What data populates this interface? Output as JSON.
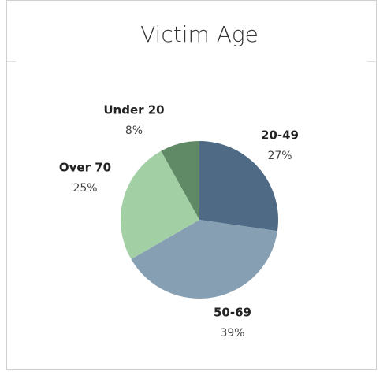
{
  "chart_data": {
    "type": "pie",
    "title": "Victim Age",
    "categories": [
      "20-49",
      "50-69",
      "Over 70",
      "Under 20"
    ],
    "values": [
      27,
      39,
      25,
      8
    ],
    "value_labels": [
      "27%",
      "39%",
      "25%",
      "8%"
    ],
    "colors": [
      "#4e6a85",
      "#869fb3",
      "#a3cfa5",
      "#5f8a65"
    ]
  }
}
